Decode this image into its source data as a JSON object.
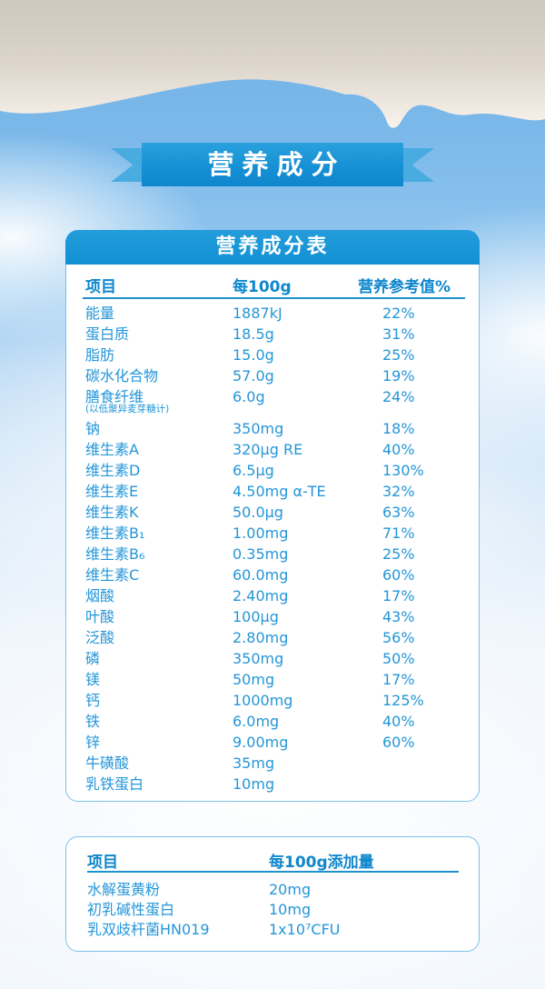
{
  "banner": {
    "title": "营养成分"
  },
  "main_table": {
    "title": "营养成分表",
    "columns": [
      "项目",
      "每100g",
      "营养参考值%"
    ],
    "rows": [
      {
        "item": "能量",
        "value": "1887kJ",
        "nrv": "22%"
      },
      {
        "item": "蛋白质",
        "value": "18.5g",
        "nrv": "31%"
      },
      {
        "item": "脂肪",
        "value": "15.0g",
        "nrv": "25%"
      },
      {
        "item": "碳水化合物",
        "value": "57.0g",
        "nrv": "19%"
      },
      {
        "item": "膳食纤维",
        "note": "(以低聚异麦芽糖计)",
        "value": "6.0g",
        "nrv": "24%"
      },
      {
        "item": "钠",
        "value": "350mg",
        "nrv": "18%"
      },
      {
        "item": "维生素A",
        "value": "320μg RE",
        "nrv": "40%"
      },
      {
        "item": "维生素D",
        "value": "6.5μg",
        "nrv": "130%"
      },
      {
        "item": "维生素E",
        "value": "4.50mg α-TE",
        "nrv": "32%"
      },
      {
        "item": "维生素K",
        "value": "50.0μg",
        "nrv": "63%"
      },
      {
        "item": "维生素B₁",
        "value": "1.00mg",
        "nrv": "71%"
      },
      {
        "item": "维生素B₆",
        "value": "0.35mg",
        "nrv": "25%"
      },
      {
        "item": "维生素C",
        "value": "60.0mg",
        "nrv": "60%"
      },
      {
        "item": "烟酸",
        "value": "2.40mg",
        "nrv": "17%"
      },
      {
        "item": "叶酸",
        "value": "100μg",
        "nrv": "43%"
      },
      {
        "item": "泛酸",
        "value": "2.80mg",
        "nrv": "56%"
      },
      {
        "item": "磷",
        "value": "350mg",
        "nrv": "50%"
      },
      {
        "item": "镁",
        "value": "50mg",
        "nrv": "17%"
      },
      {
        "item": "钙",
        "value": "1000mg",
        "nrv": "125%"
      },
      {
        "item": "铁",
        "value": "6.0mg",
        "nrv": "40%"
      },
      {
        "item": "锌",
        "value": "9.00mg",
        "nrv": "60%"
      },
      {
        "item": "牛磺酸",
        "value": "35mg",
        "nrv": ""
      },
      {
        "item": "乳铁蛋白",
        "value": "10mg",
        "nrv": ""
      }
    ]
  },
  "additives_table": {
    "columns": [
      "项目",
      "每100g添加量"
    ],
    "rows": [
      {
        "item": "水解蛋黄粉",
        "value": "20mg"
      },
      {
        "item": "初乳碱性蛋白",
        "value": "10mg"
      },
      {
        "item": "乳双歧杆菌HN019",
        "value": "1x10⁷CFU"
      }
    ]
  },
  "colors": {
    "accent_blue": "#1691d5",
    "text_blue": "#2496d8",
    "header_text_blue": "#0f87cd",
    "ribbon_tail_blue": "#49ace1",
    "card_border": "#7cc1ea",
    "sky_blue": "#7cb9ea",
    "cream": "#e6dfd6"
  }
}
